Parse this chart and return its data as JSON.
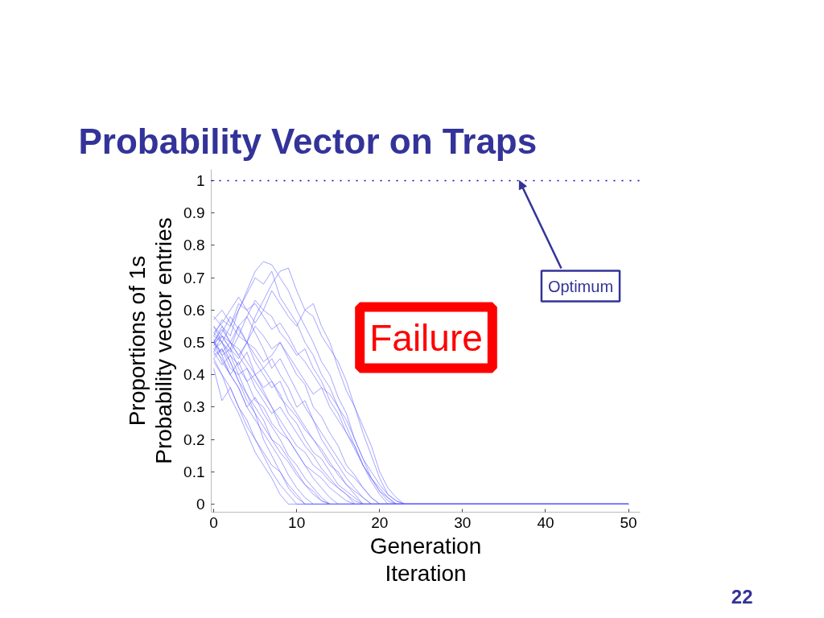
{
  "chart_data": {
    "type": "line",
    "title": "Probability Vector on Traps",
    "xlabel": "Generation",
    "ylabel": "Probability vector entries",
    "annotations": [
      "Failure",
      "Proportions of 1s",
      "Iteration",
      "22"
    ],
    "xlim": [
      -0.3,
      51.4
    ],
    "ylim": [
      -0.025,
      1.035
    ],
    "xticks": [
      0,
      10,
      20,
      30,
      40,
      50
    ],
    "yticks": [
      0,
      0.1,
      0.2,
      0.3,
      0.4,
      0.5,
      0.6,
      0.7,
      0.8,
      0.9,
      1
    ],
    "grid": false,
    "ref_lines": [
      {
        "axis": "y",
        "value": 1,
        "label": "Optimum",
        "color": "#0000cc",
        "line_style": "dotted"
      }
    ],
    "series": [
      {
        "color": "#6666ff",
        "x": [
          0,
          1,
          2,
          3,
          4,
          5,
          6,
          7,
          8,
          9,
          10,
          11,
          12,
          13,
          14,
          15,
          16,
          17,
          18,
          19,
          20,
          21,
          22,
          50
        ],
        "values": [
          0.5,
          0.55,
          0.52,
          0.6,
          0.66,
          0.72,
          0.75,
          0.74,
          0.7,
          0.66,
          0.6,
          0.55,
          0.5,
          0.44,
          0.4,
          0.33,
          0.28,
          0.2,
          0.14,
          0.08,
          0.04,
          0.01,
          0,
          0
        ]
      },
      {
        "color": "#6666ff",
        "x": [
          0,
          1,
          2,
          3,
          4,
          5,
          6,
          7,
          8,
          9,
          10,
          11,
          12,
          13,
          14,
          15,
          16,
          17,
          18,
          19,
          20,
          21,
          22,
          23,
          50
        ],
        "values": [
          0.55,
          0.52,
          0.48,
          0.45,
          0.5,
          0.58,
          0.63,
          0.68,
          0.72,
          0.73,
          0.66,
          0.6,
          0.62,
          0.55,
          0.5,
          0.42,
          0.35,
          0.3,
          0.22,
          0.15,
          0.08,
          0.03,
          0.01,
          0,
          0
        ]
      },
      {
        "color": "#6666ff",
        "x": [
          0,
          1,
          2,
          3,
          4,
          5,
          6,
          7,
          8,
          9,
          10,
          11,
          12,
          50
        ],
        "values": [
          0.48,
          0.45,
          0.4,
          0.36,
          0.3,
          0.26,
          0.22,
          0.18,
          0.14,
          0.09,
          0.05,
          0.02,
          0,
          0
        ]
      },
      {
        "color": "#6666ff",
        "x": [
          0,
          1,
          2,
          3,
          4,
          5,
          6,
          7,
          8,
          9,
          10,
          11,
          50
        ],
        "values": [
          0.52,
          0.5,
          0.44,
          0.38,
          0.32,
          0.28,
          0.2,
          0.15,
          0.1,
          0.05,
          0.02,
          0,
          0
        ]
      },
      {
        "color": "#6666ff",
        "x": [
          0,
          1,
          2,
          3,
          4,
          5,
          6,
          7,
          8,
          9,
          50
        ],
        "values": [
          0.45,
          0.4,
          0.33,
          0.28,
          0.22,
          0.16,
          0.12,
          0.08,
          0.03,
          0,
          0
        ]
      },
      {
        "color": "#6666ff",
        "x": [
          0,
          1,
          2,
          3,
          4,
          5,
          6,
          7,
          8,
          9,
          10,
          11,
          12,
          13,
          14,
          15,
          16,
          17,
          18,
          19,
          50
        ],
        "values": [
          0.5,
          0.47,
          0.5,
          0.55,
          0.58,
          0.53,
          0.48,
          0.42,
          0.45,
          0.4,
          0.35,
          0.3,
          0.26,
          0.2,
          0.16,
          0.12,
          0.08,
          0.05,
          0.02,
          0,
          0
        ]
      },
      {
        "color": "#6666ff",
        "x": [
          0,
          1,
          2,
          3,
          4,
          5,
          6,
          7,
          8,
          9,
          10,
          11,
          12,
          13,
          14,
          15,
          16,
          17,
          18,
          19,
          20,
          21,
          22,
          23,
          50
        ],
        "values": [
          0.57,
          0.6,
          0.56,
          0.52,
          0.58,
          0.63,
          0.6,
          0.66,
          0.62,
          0.58,
          0.55,
          0.6,
          0.58,
          0.52,
          0.48,
          0.44,
          0.38,
          0.3,
          0.24,
          0.18,
          0.1,
          0.05,
          0.02,
          0,
          0
        ]
      },
      {
        "color": "#6666ff",
        "x": [
          0,
          1,
          2,
          3,
          4,
          5,
          6,
          7,
          8,
          9,
          10,
          11,
          12,
          13,
          14,
          15,
          16,
          17,
          18,
          50
        ],
        "values": [
          0.5,
          0.46,
          0.48,
          0.42,
          0.38,
          0.4,
          0.35,
          0.3,
          0.26,
          0.22,
          0.18,
          0.16,
          0.12,
          0.1,
          0.07,
          0.05,
          0.03,
          0.01,
          0,
          0
        ]
      },
      {
        "color": "#6666ff",
        "x": [
          0,
          1,
          2,
          3,
          4,
          5,
          6,
          7,
          8,
          9,
          10,
          11,
          12,
          13,
          14,
          15,
          16,
          17,
          18,
          19,
          20,
          50
        ],
        "values": [
          0.47,
          0.52,
          0.5,
          0.46,
          0.5,
          0.48,
          0.44,
          0.46,
          0.5,
          0.45,
          0.4,
          0.37,
          0.3,
          0.27,
          0.22,
          0.18,
          0.12,
          0.09,
          0.05,
          0.02,
          0,
          0
        ]
      },
      {
        "color": "#6666ff",
        "x": [
          0,
          1,
          2,
          3,
          4,
          5,
          6,
          7,
          8,
          9,
          10,
          11,
          12,
          13,
          14,
          15,
          16,
          17,
          18,
          19,
          20,
          21,
          50
        ],
        "values": [
          0.53,
          0.5,
          0.55,
          0.6,
          0.65,
          0.7,
          0.68,
          0.72,
          0.64,
          0.6,
          0.56,
          0.5,
          0.46,
          0.4,
          0.36,
          0.3,
          0.24,
          0.18,
          0.12,
          0.07,
          0.03,
          0,
          0
        ]
      },
      {
        "color": "#6666ff",
        "x": [
          0,
          1,
          2,
          3,
          4,
          5,
          6,
          7,
          8,
          9,
          10,
          11,
          12,
          13,
          14,
          50
        ],
        "values": [
          0.5,
          0.44,
          0.4,
          0.36,
          0.3,
          0.33,
          0.28,
          0.24,
          0.2,
          0.15,
          0.12,
          0.08,
          0.05,
          0.02,
          0,
          0
        ]
      },
      {
        "color": "#6666ff",
        "x": [
          0,
          1,
          2,
          3,
          4,
          5,
          6,
          7,
          8,
          9,
          10,
          11,
          12,
          13,
          14,
          50
        ],
        "values": [
          0.46,
          0.48,
          0.42,
          0.4,
          0.34,
          0.3,
          0.26,
          0.2,
          0.18,
          0.14,
          0.1,
          0.06,
          0.04,
          0.01,
          0,
          0
        ]
      },
      {
        "color": "#6666ff",
        "x": [
          0,
          1,
          2,
          3,
          4,
          5,
          6,
          7,
          8,
          9,
          10,
          11,
          12,
          13,
          14,
          15,
          16,
          17,
          18,
          50
        ],
        "values": [
          0.55,
          0.5,
          0.47,
          0.52,
          0.5,
          0.44,
          0.4,
          0.36,
          0.38,
          0.32,
          0.28,
          0.24,
          0.2,
          0.16,
          0.12,
          0.1,
          0.06,
          0.03,
          0,
          0
        ]
      },
      {
        "color": "#6666ff",
        "x": [
          0,
          1,
          2,
          3,
          4,
          5,
          6,
          7,
          8,
          9,
          10,
          11,
          12,
          13,
          14,
          15,
          16,
          17,
          18,
          19,
          20,
          21,
          22,
          50
        ],
        "values": [
          0.49,
          0.53,
          0.58,
          0.54,
          0.5,
          0.55,
          0.52,
          0.48,
          0.5,
          0.46,
          0.42,
          0.38,
          0.34,
          0.36,
          0.3,
          0.26,
          0.22,
          0.17,
          0.12,
          0.08,
          0.04,
          0.02,
          0,
          0
        ]
      },
      {
        "color": "#6666ff",
        "x": [
          0,
          1,
          2,
          3,
          4,
          5,
          6,
          7,
          8,
          9,
          10,
          11,
          12,
          13,
          14,
          15,
          16,
          17,
          50
        ],
        "values": [
          0.51,
          0.46,
          0.4,
          0.44,
          0.38,
          0.32,
          0.3,
          0.25,
          0.22,
          0.2,
          0.16,
          0.12,
          0.1,
          0.08,
          0.05,
          0.03,
          0.01,
          0,
          0
        ]
      },
      {
        "color": "#6666ff",
        "x": [
          0,
          1,
          2,
          3,
          4,
          5,
          6,
          7,
          8,
          9,
          10,
          11,
          50
        ],
        "values": [
          0.44,
          0.4,
          0.36,
          0.3,
          0.26,
          0.2,
          0.16,
          0.12,
          0.1,
          0.06,
          0.03,
          0,
          0
        ]
      },
      {
        "color": "#6666ff",
        "x": [
          0,
          1,
          2,
          3,
          4,
          5,
          6,
          7,
          8,
          9,
          10,
          11,
          12,
          13,
          14,
          15,
          16,
          17,
          18,
          19,
          20,
          21,
          22,
          50
        ],
        "values": [
          0.52,
          0.57,
          0.55,
          0.62,
          0.6,
          0.56,
          0.6,
          0.58,
          0.53,
          0.5,
          0.46,
          0.48,
          0.42,
          0.38,
          0.32,
          0.28,
          0.22,
          0.18,
          0.12,
          0.08,
          0.05,
          0.02,
          0,
          0
        ]
      },
      {
        "color": "#6666ff",
        "x": [
          0,
          1,
          2,
          3,
          4,
          5,
          6,
          7,
          8,
          9,
          10,
          11,
          12,
          13,
          14,
          15,
          16,
          17,
          18,
          50
        ],
        "values": [
          0.48,
          0.5,
          0.46,
          0.43,
          0.47,
          0.4,
          0.36,
          0.38,
          0.34,
          0.28,
          0.25,
          0.2,
          0.16,
          0.14,
          0.1,
          0.06,
          0.04,
          0.02,
          0,
          0
        ]
      },
      {
        "color": "#6666ff",
        "x": [
          0,
          1,
          2,
          3,
          4,
          5,
          6,
          7,
          8,
          9,
          10,
          11,
          12,
          13,
          14,
          15,
          50
        ],
        "values": [
          0.58,
          0.55,
          0.5,
          0.46,
          0.42,
          0.38,
          0.34,
          0.3,
          0.24,
          0.2,
          0.16,
          0.12,
          0.08,
          0.05,
          0.02,
          0,
          0
        ]
      },
      {
        "color": "#6666ff",
        "x": [
          0,
          1,
          2,
          3,
          4,
          5,
          6,
          7,
          8,
          9,
          10,
          11,
          12,
          13,
          14,
          15,
          16,
          17,
          18,
          19,
          20,
          50
        ],
        "values": [
          0.5,
          0.52,
          0.48,
          0.55,
          0.5,
          0.46,
          0.42,
          0.45,
          0.4,
          0.36,
          0.3,
          0.32,
          0.26,
          0.22,
          0.18,
          0.14,
          0.1,
          0.08,
          0.05,
          0.02,
          0,
          0
        ]
      },
      {
        "color": "#6666ff",
        "x": [
          0,
          1,
          2,
          3,
          4,
          5,
          6,
          7,
          8,
          9,
          10,
          11,
          12,
          13,
          14,
          15,
          16,
          17,
          50
        ],
        "values": [
          0.47,
          0.43,
          0.46,
          0.4,
          0.42,
          0.36,
          0.32,
          0.28,
          0.3,
          0.26,
          0.22,
          0.18,
          0.15,
          0.11,
          0.08,
          0.05,
          0.03,
          0,
          0
        ]
      },
      {
        "color": "#6666ff",
        "x": [
          0,
          1,
          2,
          3,
          4,
          5,
          6,
          7,
          8,
          9,
          10,
          11,
          12,
          13,
          14,
          15,
          16,
          17,
          18,
          19,
          20,
          21,
          22,
          23,
          50
        ],
        "values": [
          0.53,
          0.56,
          0.6,
          0.64,
          0.6,
          0.62,
          0.58,
          0.54,
          0.56,
          0.52,
          0.47,
          0.44,
          0.4,
          0.36,
          0.34,
          0.3,
          0.26,
          0.2,
          0.14,
          0.1,
          0.06,
          0.03,
          0.01,
          0,
          0
        ]
      },
      {
        "color": "#6666ff",
        "x": [
          0,
          1,
          2,
          3,
          4,
          5,
          6,
          7,
          8,
          9,
          10,
          11,
          12,
          13,
          14,
          50
        ],
        "values": [
          0.45,
          0.48,
          0.44,
          0.38,
          0.34,
          0.28,
          0.24,
          0.2,
          0.16,
          0.13,
          0.09,
          0.06,
          0.03,
          0.01,
          0,
          0
        ]
      },
      {
        "color": "#6666ff",
        "x": [
          0,
          1,
          2,
          3,
          4,
          5,
          6,
          7,
          8,
          9,
          10,
          11,
          12,
          13,
          14,
          15,
          16,
          17,
          18,
          19,
          50
        ],
        "values": [
          0.5,
          0.54,
          0.5,
          0.48,
          0.44,
          0.4,
          0.42,
          0.38,
          0.33,
          0.3,
          0.27,
          0.23,
          0.2,
          0.17,
          0.13,
          0.09,
          0.06,
          0.04,
          0.02,
          0,
          0
        ]
      },
      {
        "color": "#6666ff",
        "x": [
          0,
          1,
          2,
          3,
          4,
          5,
          6,
          7,
          8,
          9,
          10,
          50
        ],
        "values": [
          0.42,
          0.32,
          0.36,
          0.3,
          0.24,
          0.2,
          0.15,
          0.1,
          0.06,
          0.03,
          0,
          0
        ]
      }
    ]
  }
}
